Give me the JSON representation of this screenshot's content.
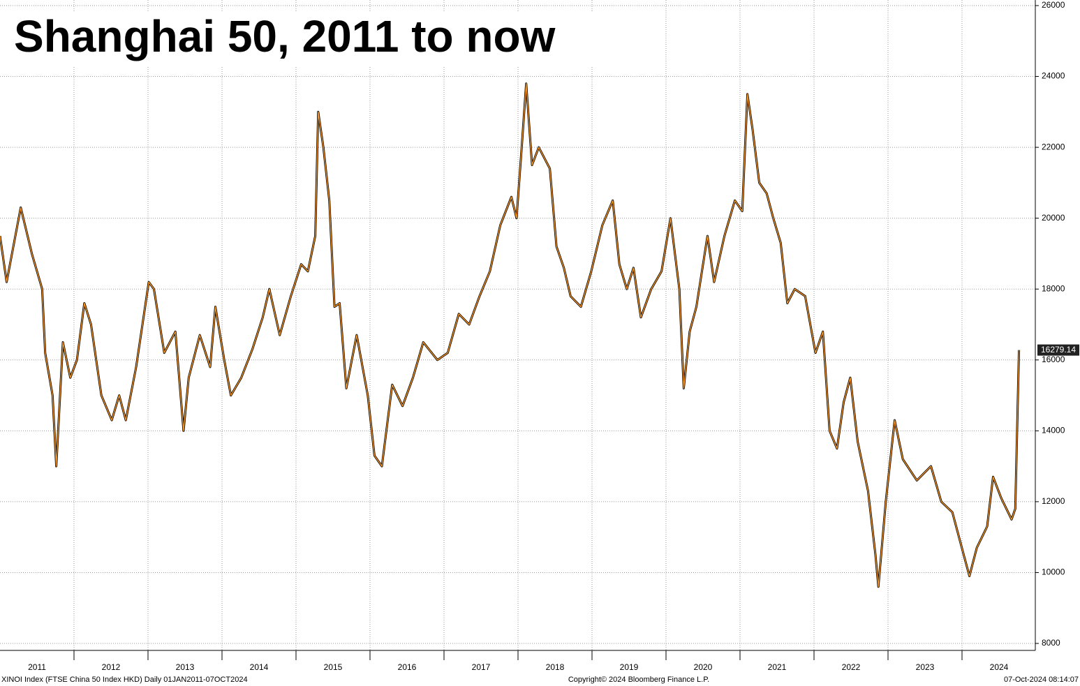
{
  "chart_data": {
    "type": "line",
    "title": "Shanghai 50, 2011 to now",
    "footer_left": "XINOI Index (FTSE China 50 Index HKD)  Daily 01JAN2011-07OCT2024",
    "footer_center": "Copyright© 2024 Bloomberg Finance L.P.",
    "footer_right": "07-Oct-2024 08:14:07",
    "xlim": [
      2011,
      2025.0
    ],
    "ylim": [
      8000,
      26000
    ],
    "yticks": [
      8000,
      10000,
      12000,
      14000,
      16000,
      18000,
      20000,
      22000,
      24000,
      26000
    ],
    "xticks": [
      {
        "value": 2011.5,
        "label": "2011"
      },
      {
        "value": 2012.5,
        "label": "2012"
      },
      {
        "value": 2013.5,
        "label": "2013"
      },
      {
        "value": 2014.5,
        "label": "2014"
      },
      {
        "value": 2015.5,
        "label": "2015"
      },
      {
        "value": 2016.5,
        "label": "2016"
      },
      {
        "value": 2017.5,
        "label": "2017"
      },
      {
        "value": 2018.5,
        "label": "2018"
      },
      {
        "value": 2019.5,
        "label": "2019"
      },
      {
        "value": 2020.5,
        "label": "2020"
      },
      {
        "value": 2021.5,
        "label": "2021"
      },
      {
        "value": 2022.5,
        "label": "2022"
      },
      {
        "value": 2023.5,
        "label": "2023"
      },
      {
        "value": 2024.5,
        "label": "2024"
      }
    ],
    "xgrid": [
      2012,
      2013,
      2014,
      2015,
      2016,
      2017,
      2018,
      2019,
      2020,
      2021,
      2022,
      2023,
      2024
    ],
    "grid": true,
    "x": [
      2011.0,
      2011.09,
      2011.28,
      2011.43,
      2011.57,
      2011.61,
      2011.71,
      2011.76,
      2011.85,
      2011.95,
      2012.04,
      2012.14,
      2012.23,
      2012.37,
      2012.51,
      2012.61,
      2012.7,
      2012.84,
      2013.01,
      2013.08,
      2013.22,
      2013.37,
      2013.48,
      2013.55,
      2013.7,
      2013.84,
      2013.91,
      2014.03,
      2014.12,
      2014.26,
      2014.41,
      2014.55,
      2014.64,
      2014.78,
      2014.93,
      2015.07,
      2015.16,
      2015.26,
      2015.3,
      2015.37,
      2015.45,
      2015.52,
      2015.59,
      2015.68,
      2015.82,
      2015.97,
      2016.06,
      2016.16,
      2016.3,
      2016.44,
      2016.58,
      2016.72,
      2016.91,
      2017.05,
      2017.2,
      2017.34,
      2017.48,
      2017.62,
      2017.76,
      2017.91,
      2017.98,
      2018.05,
      2018.11,
      2018.19,
      2018.28,
      2018.43,
      2018.52,
      2018.62,
      2018.71,
      2018.85,
      2018.99,
      2019.14,
      2019.28,
      2019.37,
      2019.47,
      2019.56,
      2019.66,
      2019.8,
      2019.94,
      2020.06,
      2020.18,
      2020.24,
      2020.32,
      2020.41,
      2020.56,
      2020.65,
      2020.79,
      2020.93,
      2021.03,
      2021.1,
      2021.17,
      2021.26,
      2021.36,
      2021.45,
      2021.55,
      2021.64,
      2021.74,
      2021.88,
      2022.02,
      2022.12,
      2022.21,
      2022.31,
      2022.4,
      2022.49,
      2022.59,
      2022.73,
      2022.83,
      2022.87,
      2022.97,
      2023.09,
      2023.2,
      2023.39,
      2023.58,
      2023.72,
      2023.87,
      2024.01,
      2024.1,
      2024.2,
      2024.34,
      2024.42,
      2024.53,
      2024.67,
      2024.72,
      2024.77
    ],
    "series": [
      {
        "name": "XINOI Index",
        "color": "#f7941d",
        "values": [
          19500,
          18200,
          20300,
          19000,
          18000,
          16200,
          15000,
          13000,
          16500,
          15500,
          16000,
          17600,
          17000,
          15000,
          14300,
          15000,
          14300,
          15800,
          18200,
          18000,
          16200,
          16800,
          14000,
          15500,
          16700,
          15800,
          17500,
          16000,
          15000,
          15500,
          16300,
          17200,
          18000,
          16700,
          17800,
          18700,
          18500,
          19500,
          23000,
          22000,
          20500,
          17500,
          17600,
          15200,
          16700,
          15000,
          13300,
          13000,
          15300,
          14700,
          15500,
          16500,
          16000,
          16200,
          17300,
          17000,
          17800,
          18500,
          19800,
          20600,
          20000,
          22000,
          23800,
          21500,
          22000,
          21400,
          19200,
          18600,
          17800,
          17500,
          18500,
          19800,
          20500,
          18700,
          18000,
          18600,
          17200,
          18000,
          18500,
          20000,
          18000,
          15200,
          16800,
          17500,
          19500,
          18200,
          19500,
          20500,
          20200,
          23500,
          22500,
          21000,
          20700,
          20000,
          19300,
          17600,
          18000,
          17800,
          16200,
          16800,
          14000,
          13500,
          14800,
          15500,
          13700,
          12300,
          10500,
          9600,
          12000,
          14300,
          13200,
          12600,
          13000,
          12000,
          11700,
          10600,
          9900,
          10700,
          11300,
          12700,
          12100,
          11500,
          11800,
          16279.14
        ]
      }
    ]
  }
}
